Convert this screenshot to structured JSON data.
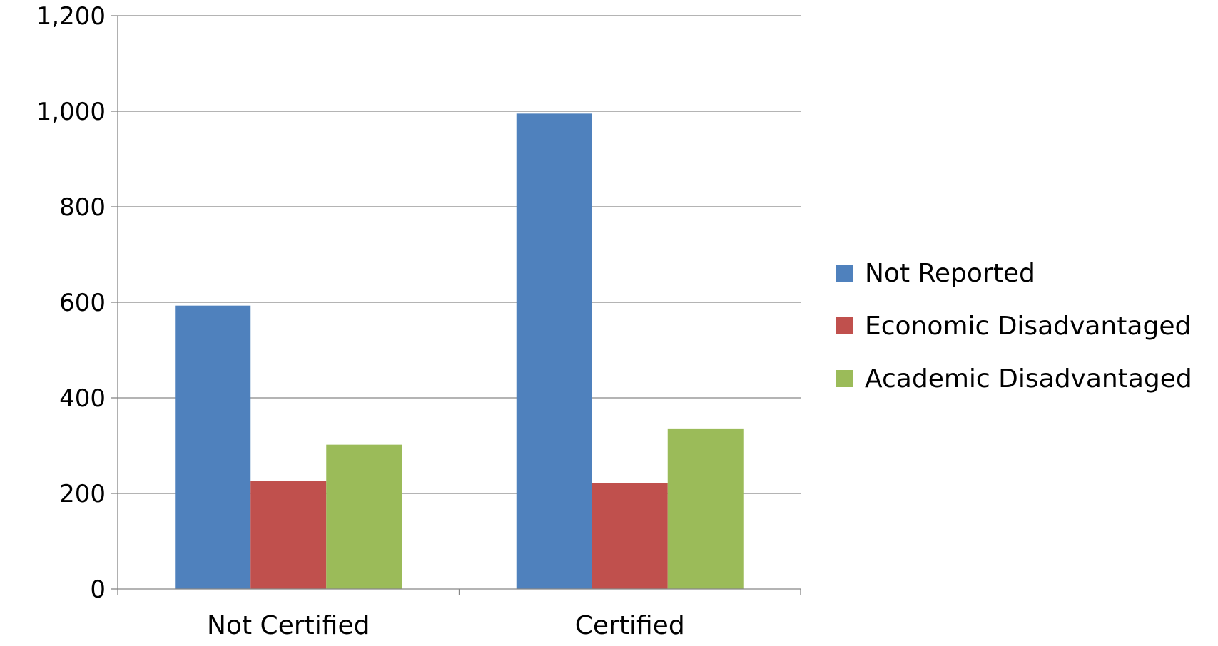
{
  "chart_data": {
    "type": "bar",
    "categories": [
      "Not Certified",
      "Certified"
    ],
    "series": [
      {
        "name": "Not Reported",
        "values": [
          593,
          995
        ],
        "color": "#4F81BD"
      },
      {
        "name": "Economic Disadvantaged",
        "values": [
          226,
          221
        ],
        "color": "#C0504D"
      },
      {
        "name": "Academic Disadvantaged",
        "values": [
          302,
          336
        ],
        "color": "#9BBB59"
      }
    ],
    "title": "",
    "xlabel": "",
    "ylabel": "",
    "ylim": [
      0,
      1200
    ],
    "yticks": [
      0,
      200,
      400,
      600,
      800,
      1000,
      1200
    ],
    "ytick_labels": [
      "0",
      "200",
      "400",
      "600",
      "800",
      "1,000",
      "1,200"
    ],
    "grid": true,
    "legend_position": "right"
  }
}
